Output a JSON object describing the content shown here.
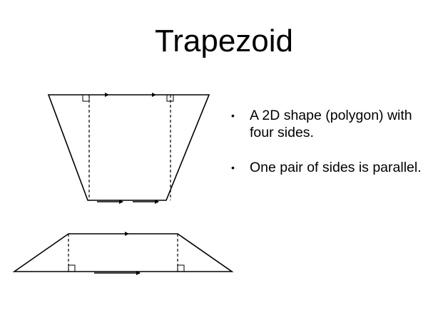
{
  "slide": {
    "title": "Trapezoid",
    "bullets": [
      {
        "marker": "•",
        "text": "A 2D shape (polygon) with four sides."
      },
      {
        "marker": "•",
        "text": "One pair of sides is parallel."
      }
    ]
  },
  "colors": {
    "stroke": "#000000",
    "background": "#ffffff"
  }
}
